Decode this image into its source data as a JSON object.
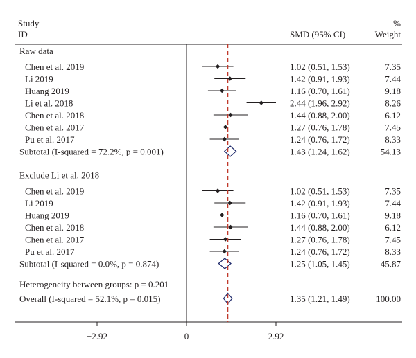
{
  "chart_data": {
    "type": "forest",
    "header": {
      "study_line1": "Study",
      "study_line2": "ID",
      "effect": "SMD (95% CI)",
      "weight_line1": "%",
      "weight_line2": "Weight"
    },
    "x_axis": {
      "ticks": [
        {
          "value": -2.92,
          "label": "−2.92"
        },
        {
          "value": 0,
          "label": "0"
        },
        {
          "value": 2.92,
          "label": "2.92"
        }
      ],
      "range": [
        -4.2,
        4.2
      ],
      "null_value": 0,
      "overall_line_value": 1.35,
      "overall_line_style": "dashed",
      "overall_line_color": "#c0392b"
    },
    "colors": {
      "point": "#231f20",
      "diamond": "#1f2a6b"
    },
    "groups": [
      {
        "label": "Raw data",
        "studies": [
          {
            "name": "Chen et al. 2019",
            "smd": 1.02,
            "lo": 0.51,
            "hi": 1.53,
            "ci_text": "1.02 (0.51, 1.53)",
            "weight": "7.35"
          },
          {
            "name": "Li 2019",
            "smd": 1.42,
            "lo": 0.91,
            "hi": 1.93,
            "ci_text": "1.42 (0.91, 1.93)",
            "weight": "7.44"
          },
          {
            "name": "Huang 2019",
            "smd": 1.16,
            "lo": 0.7,
            "hi": 1.61,
            "ci_text": "1.16 (0.70, 1.61)",
            "weight": "9.18"
          },
          {
            "name": "Li et al. 2018",
            "smd": 2.44,
            "lo": 1.96,
            "hi": 2.92,
            "ci_text": "2.44 (1.96, 2.92)",
            "weight": "8.26"
          },
          {
            "name": "Chen et al. 2018",
            "smd": 1.44,
            "lo": 0.88,
            "hi": 2.0,
            "ci_text": "1.44 (0.88, 2.00)",
            "weight": "6.12"
          },
          {
            "name": "Chen et al. 2017",
            "smd": 1.27,
            "lo": 0.76,
            "hi": 1.78,
            "ci_text": "1.27 (0.76, 1.78)",
            "weight": "7.45"
          },
          {
            "name": "Pu et al. 2017",
            "smd": 1.24,
            "lo": 0.76,
            "hi": 1.72,
            "ci_text": "1.24 (0.76, 1.72)",
            "weight": "8.33"
          }
        ],
        "subtotal": {
          "label": "Subtotal (I-squared = 72.2%, p = 0.001)",
          "smd": 1.43,
          "lo": 1.24,
          "hi": 1.62,
          "ci_text": "1.43 (1.24, 1.62)",
          "weight": "54.13"
        }
      },
      {
        "label": "Exclude Li et al. 2018",
        "studies": [
          {
            "name": "Chen et al. 2019",
            "smd": 1.02,
            "lo": 0.51,
            "hi": 1.53,
            "ci_text": "1.02 (0.51, 1.53)",
            "weight": "7.35"
          },
          {
            "name": "Li 2019",
            "smd": 1.42,
            "lo": 0.91,
            "hi": 1.93,
            "ci_text": "1.42 (0.91, 1.93)",
            "weight": "7.44"
          },
          {
            "name": "Huang 2019",
            "smd": 1.16,
            "lo": 0.7,
            "hi": 1.61,
            "ci_text": "1.16 (0.70, 1.61)",
            "weight": "9.18"
          },
          {
            "name": "Chen et al. 2018",
            "smd": 1.44,
            "lo": 0.88,
            "hi": 2.0,
            "ci_text": "1.44 (0.88, 2.00)",
            "weight": "6.12"
          },
          {
            "name": "Chen et al. 2017",
            "smd": 1.27,
            "lo": 0.76,
            "hi": 1.78,
            "ci_text": "1.27 (0.76, 1.78)",
            "weight": "7.45"
          },
          {
            "name": "Pu et al. 2017",
            "smd": 1.24,
            "lo": 0.76,
            "hi": 1.72,
            "ci_text": "1.24 (0.76, 1.72)",
            "weight": "8.33"
          }
        ],
        "subtotal": {
          "label": "Subtotal (I-squared = 0.0%, p = 0.874)",
          "smd": 1.25,
          "lo": 1.05,
          "hi": 1.45,
          "ci_text": "1.25 (1.05, 1.45)",
          "weight": "45.87"
        }
      }
    ],
    "heterogeneity_text": "Heterogeneity between groups: p = 0.201",
    "overall": {
      "label": "Overall (I-squared = 52.1%, p = 0.015)",
      "smd": 1.35,
      "lo": 1.21,
      "hi": 1.49,
      "ci_text": "1.35 (1.21, 1.49)",
      "weight": "100.00"
    }
  }
}
